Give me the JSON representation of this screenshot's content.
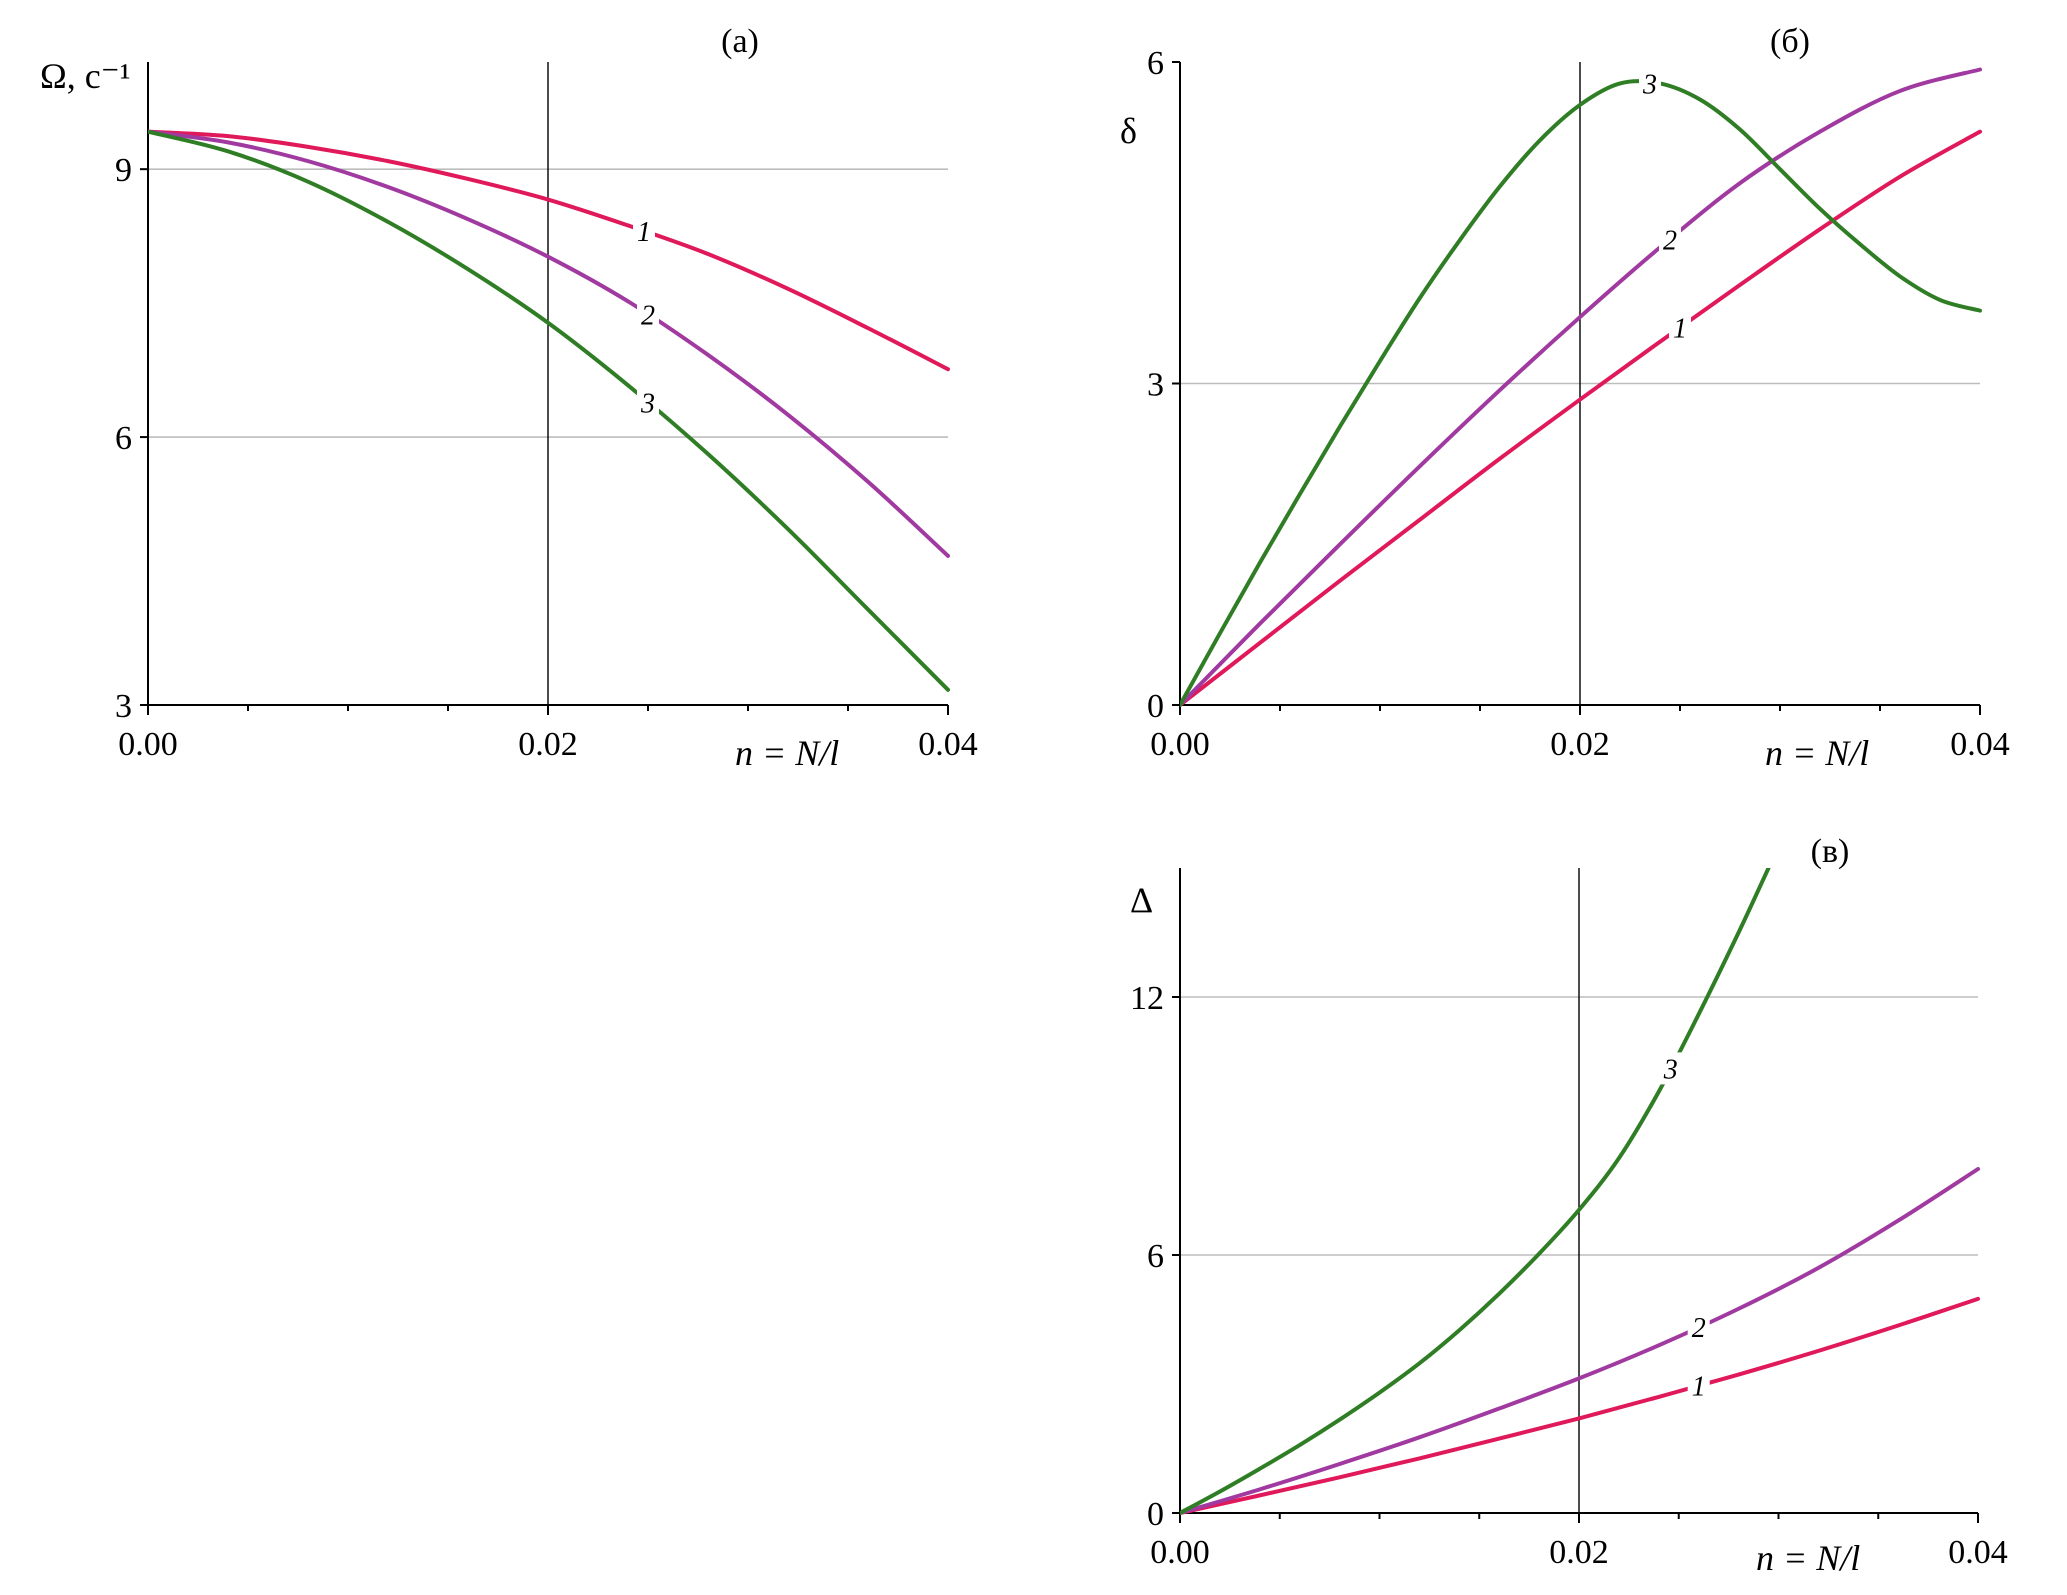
{
  "colors": {
    "1": "#e0195a",
    "2": "#a13aa0",
    "3": "#2f7d24",
    "3a": "#1e5a14"
  },
  "chart_data": [
    {
      "id": "a",
      "type": "line",
      "panel_label": "(a)",
      "ylabel": "Ω, с⁻¹",
      "xlabel": "n = N/l",
      "xlim": [
        0,
        0.04
      ],
      "ylim": [
        3,
        10.2
      ],
      "xticks": [
        "0.00",
        "0.02",
        "0.04"
      ],
      "xtick_values": [
        0,
        0.02,
        0.04
      ],
      "yticks": [
        "3",
        "6",
        "9"
      ],
      "ytick_values": [
        3,
        6,
        9
      ],
      "grid_y": [
        6,
        9
      ],
      "vline_x": 0.02,
      "series": [
        {
          "name": "1",
          "label_at": 0.0248,
          "x": [
            0,
            0.004,
            0.008,
            0.012,
            0.016,
            0.02,
            0.024,
            0.028,
            0.032,
            0.036,
            0.04
          ],
          "y": [
            9.42,
            9.37,
            9.25,
            9.09,
            8.89,
            8.66,
            8.37,
            8.05,
            7.66,
            7.22,
            6.76
          ]
        },
        {
          "name": "2",
          "label_at": 0.025,
          "x": [
            0,
            0.004,
            0.008,
            0.012,
            0.016,
            0.02,
            0.024,
            0.028,
            0.032,
            0.036,
            0.04
          ],
          "y": [
            9.42,
            9.3,
            9.09,
            8.8,
            8.44,
            8.02,
            7.52,
            6.92,
            6.25,
            5.5,
            4.67
          ]
        },
        {
          "name": "3",
          "label_at": 0.025,
          "x": [
            0,
            0.004,
            0.008,
            0.012,
            0.016,
            0.02,
            0.024,
            0.028,
            0.032,
            0.036,
            0.04
          ],
          "y": [
            9.42,
            9.2,
            8.86,
            8.41,
            7.88,
            7.28,
            6.58,
            5.81,
            4.97,
            4.07,
            3.17
          ]
        }
      ]
    },
    {
      "id": "б",
      "type": "line",
      "panel_label": "(б)",
      "ylabel": "δ",
      "xlabel": "n = N/l",
      "xlim": [
        0,
        0.04
      ],
      "ylim": [
        0,
        6
      ],
      "xticks": [
        "0.00",
        "0.02",
        "0.04"
      ],
      "xtick_values": [
        0,
        0.02,
        0.04
      ],
      "yticks": [
        "0",
        "3",
        "6"
      ],
      "ytick_values": [
        0,
        3,
        6
      ],
      "grid_y": [
        3
      ],
      "vline_x": 0.02,
      "series": [
        {
          "name": "1",
          "label_at": 0.025,
          "x": [
            0,
            0.004,
            0.008,
            0.012,
            0.016,
            0.02,
            0.024,
            0.028,
            0.032,
            0.036,
            0.04
          ],
          "y": [
            0,
            0.58,
            1.16,
            1.73,
            2.3,
            2.85,
            3.39,
            3.92,
            4.44,
            4.93,
            5.35
          ]
        },
        {
          "name": "2",
          "label_at": 0.0245,
          "x": [
            0,
            0.004,
            0.008,
            0.012,
            0.016,
            0.02,
            0.024,
            0.028,
            0.032,
            0.036,
            0.04
          ],
          "y": [
            0,
            0.76,
            1.5,
            2.23,
            2.94,
            3.62,
            4.27,
            4.87,
            5.35,
            5.73,
            5.93
          ]
        },
        {
          "name": "3",
          "label_at": 0.0235,
          "x": [
            0,
            0.002,
            0.004,
            0.006,
            0.008,
            0.01,
            0.012,
            0.014,
            0.016,
            0.018,
            0.02,
            0.022,
            0.024,
            0.026,
            0.028,
            0.03,
            0.032,
            0.034,
            0.036,
            0.038,
            0.04
          ],
          "y": [
            0,
            0.67,
            1.33,
            1.97,
            2.6,
            3.21,
            3.8,
            4.34,
            4.84,
            5.27,
            5.6,
            5.8,
            5.8,
            5.65,
            5.37,
            5.0,
            4.63,
            4.3,
            4.0,
            3.78,
            3.68
          ]
        }
      ]
    },
    {
      "id": "в",
      "type": "line",
      "panel_label": "(в)",
      "ylabel": "Δ",
      "xlabel": "n = N/l",
      "xlim": [
        0,
        0.04
      ],
      "ylim": [
        0,
        15
      ],
      "xticks": [
        "0.00",
        "0.02",
        "0.04"
      ],
      "xtick_values": [
        0,
        0.02,
        0.04
      ],
      "yticks": [
        "0",
        "6",
        "12"
      ],
      "ytick_values": [
        0,
        6,
        12
      ],
      "grid_y": [
        6,
        12
      ],
      "vline_x": 0.02,
      "series": [
        {
          "name": "1",
          "label_at": 0.026,
          "x": [
            0,
            0.004,
            0.008,
            0.012,
            0.016,
            0.02,
            0.024,
            0.028,
            0.032,
            0.036,
            0.04
          ],
          "y": [
            0,
            0.41,
            0.83,
            1.27,
            1.73,
            2.2,
            2.7,
            3.22,
            3.77,
            4.36,
            4.98
          ]
        },
        {
          "name": "2",
          "label_at": 0.026,
          "x": [
            0,
            0.004,
            0.008,
            0.012,
            0.016,
            0.02,
            0.024,
            0.028,
            0.032,
            0.036,
            0.04
          ],
          "y": [
            0,
            0.55,
            1.14,
            1.76,
            2.43,
            3.13,
            3.9,
            4.75,
            5.7,
            6.8,
            8.0
          ]
        },
        {
          "name": "3",
          "label_at": 0.0246,
          "x": [
            0,
            0.002,
            0.004,
            0.006,
            0.008,
            0.01,
            0.012,
            0.014,
            0.016,
            0.018,
            0.02,
            0.022,
            0.024,
            0.026,
            0.028,
            0.0295
          ],
          "y": [
            0,
            0.5,
            1.03,
            1.58,
            2.17,
            2.8,
            3.48,
            4.25,
            5.1,
            6.03,
            7.05,
            8.25,
            9.8,
            11.6,
            13.5,
            15.0
          ]
        }
      ]
    }
  ]
}
